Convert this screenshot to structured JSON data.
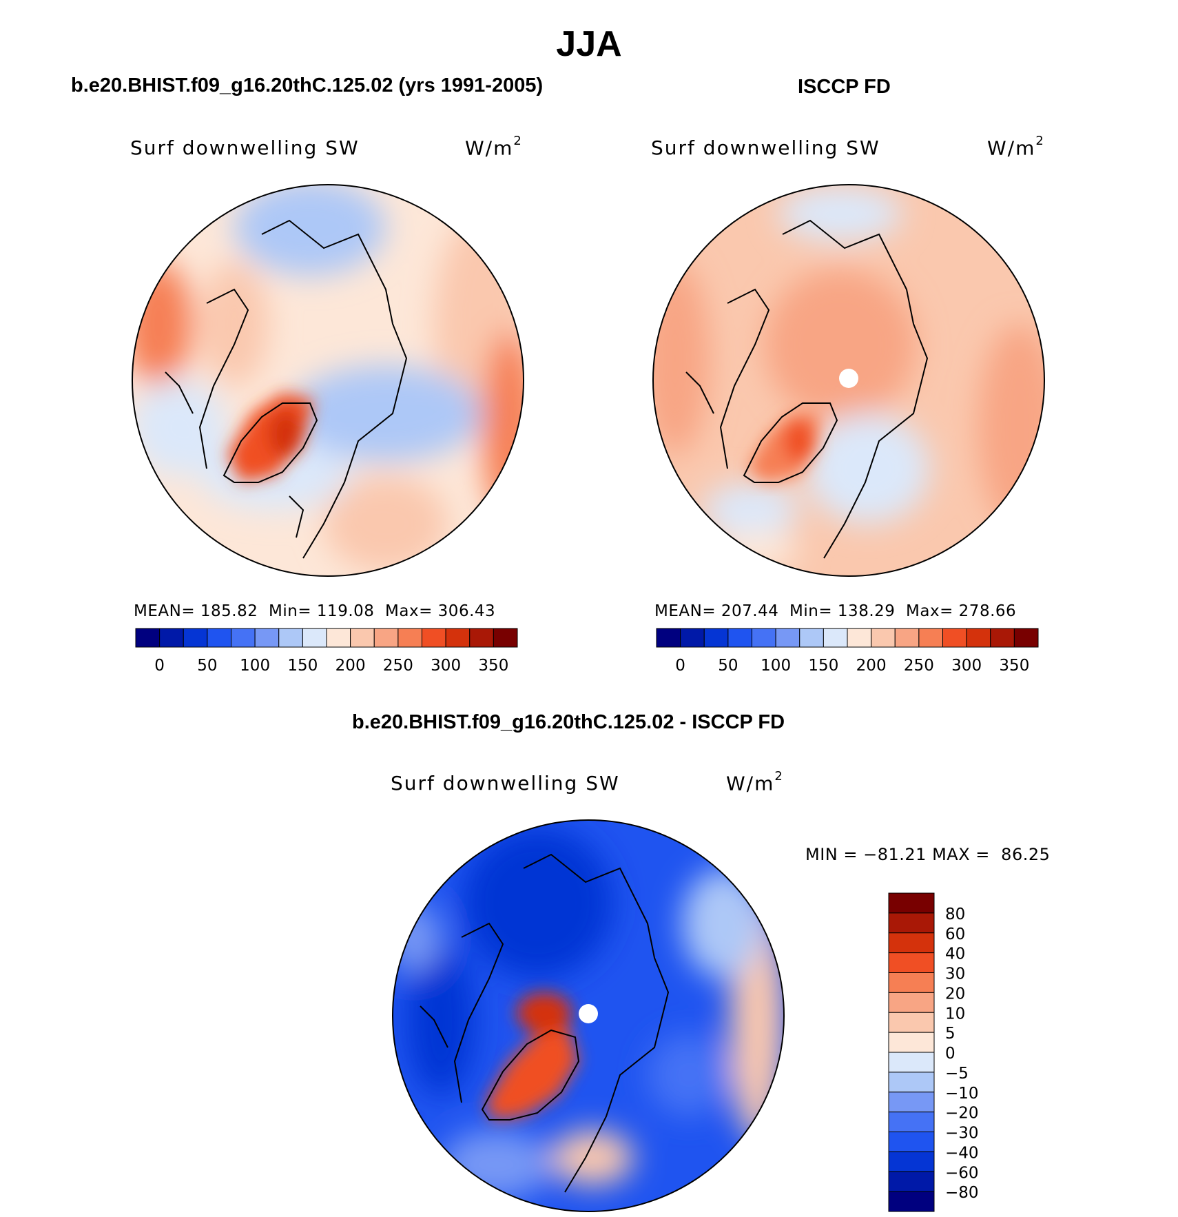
{
  "title": "JJA",
  "panels": [
    {
      "title": "b.e20.BHIST.f09_g16.20thC.125.02 (yrs 1991-2005)",
      "variable": "Surf downwelling SW",
      "units_base": "W/m",
      "units_sup": "2",
      "stats": {
        "mean_label": "MEAN=",
        "mean": "185.82",
        "min_label": "Min=",
        "min": "119.08",
        "max_label": "Max=",
        "max": "306.43"
      }
    },
    {
      "title": "ISCCP FD",
      "variable": "Surf downwelling SW",
      "units_base": "W/m",
      "units_sup": "2",
      "stats": {
        "mean_label": "MEAN=",
        "mean": "207.44",
        "min_label": "Min=",
        "min": "138.29",
        "max_label": "Max=",
        "max": "278.66"
      }
    },
    {
      "title": "b.e20.BHIST.f09_g16.20thC.125.02 - ISCCP FD",
      "variable": "Surf downwelling SW",
      "units_base": "W/m",
      "units_sup": "2",
      "stats": {
        "min_label": "MIN =",
        "min": "−81.21",
        "max_label": "MAX =",
        "max": "86.25"
      }
    }
  ],
  "chart_data": [
    {
      "type": "contour-map",
      "projection": "north-polar-stereographic",
      "panel": 0,
      "levels": [
        0,
        25,
        50,
        75,
        100,
        125,
        150,
        175,
        200,
        225,
        250,
        275,
        300,
        325,
        350
      ],
      "colorbar_ticks": [
        "0",
        "50",
        "100",
        "150",
        "200",
        "250",
        "300",
        "350"
      ],
      "colorbar_orientation": "horizontal",
      "mean": 185.82,
      "min": 119.08,
      "max": 306.43
    },
    {
      "type": "contour-map",
      "projection": "north-polar-stereographic",
      "panel": 1,
      "levels": [
        0,
        25,
        50,
        75,
        100,
        125,
        150,
        175,
        200,
        225,
        250,
        275,
        300,
        325,
        350
      ],
      "colorbar_ticks": [
        "0",
        "50",
        "100",
        "150",
        "200",
        "250",
        "300",
        "350"
      ],
      "colorbar_orientation": "horizontal",
      "mean": 207.44,
      "min": 138.29,
      "max": 278.66
    },
    {
      "type": "contour-map",
      "projection": "north-polar-stereographic",
      "panel": 2,
      "levels": [
        -80,
        -60,
        -40,
        -30,
        -20,
        -10,
        -5,
        0,
        5,
        10,
        20,
        30,
        40,
        60,
        80
      ],
      "colorbar_ticks": [
        "80",
        "60",
        "40",
        "30",
        "20",
        "10",
        "5",
        "0",
        "−5",
        "−10",
        "−20",
        "−30",
        "−40",
        "−60",
        "−80"
      ],
      "colorbar_orientation": "vertical",
      "min": -81.21,
      "max": 86.25
    }
  ],
  "colors": {
    "abs_palette": [
      "#00007f",
      "#0019a8",
      "#0535d4",
      "#1f54f0",
      "#4572f5",
      "#7798f5",
      "#adc8f7",
      "#dbe8fa",
      "#fde7d8",
      "#fac8ae",
      "#f8a584",
      "#f67f54",
      "#f04f24",
      "#d4320c",
      "#a91806",
      "#780000"
    ],
    "diff_palette": [
      "#00007f",
      "#0019a8",
      "#0535d4",
      "#1f54f0",
      "#4572f5",
      "#7798f5",
      "#adc8f7",
      "#dbe8fa",
      "#fde7d8",
      "#fac8ae",
      "#f8a584",
      "#f67f54",
      "#f04f24",
      "#d4320c",
      "#a91806",
      "#780000"
    ]
  }
}
